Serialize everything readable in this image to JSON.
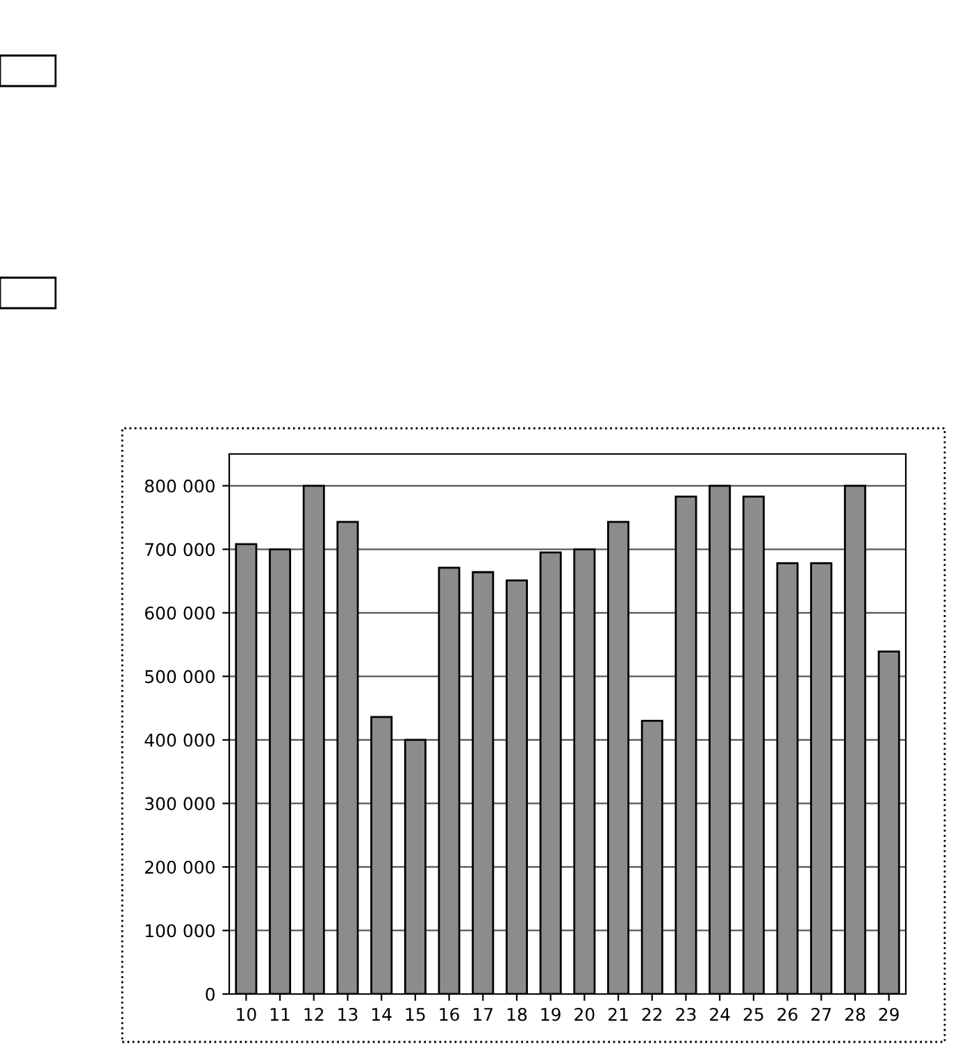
{
  "chart_data": {
    "type": "bar",
    "categories": [
      "10",
      "11",
      "12",
      "13",
      "14",
      "15",
      "16",
      "17",
      "18",
      "19",
      "20",
      "21",
      "22",
      "23",
      "24",
      "25",
      "26",
      "27",
      "28",
      "29"
    ],
    "values": [
      708000,
      700000,
      800000,
      743000,
      436000,
      400000,
      671000,
      664000,
      651000,
      695000,
      700000,
      743000,
      430000,
      783000,
      800000,
      783000,
      678000,
      678000,
      800000,
      539000
    ],
    "color": "#8c8c8c",
    "ylim": [
      0,
      850000
    ],
    "yticks": [
      {
        "value": 0,
        "label": "0"
      },
      {
        "value": 100000,
        "label": "100 000"
      },
      {
        "value": 200000,
        "label": "200 000"
      },
      {
        "value": 300000,
        "label": "300 000"
      },
      {
        "value": 400000,
        "label": "400 000"
      },
      {
        "value": 500000,
        "label": "500 000"
      },
      {
        "value": 600000,
        "label": "600 000"
      },
      {
        "value": 700000,
        "label": "700 000"
      },
      {
        "value": 800000,
        "label": "800 000"
      }
    ],
    "grid": "y"
  }
}
